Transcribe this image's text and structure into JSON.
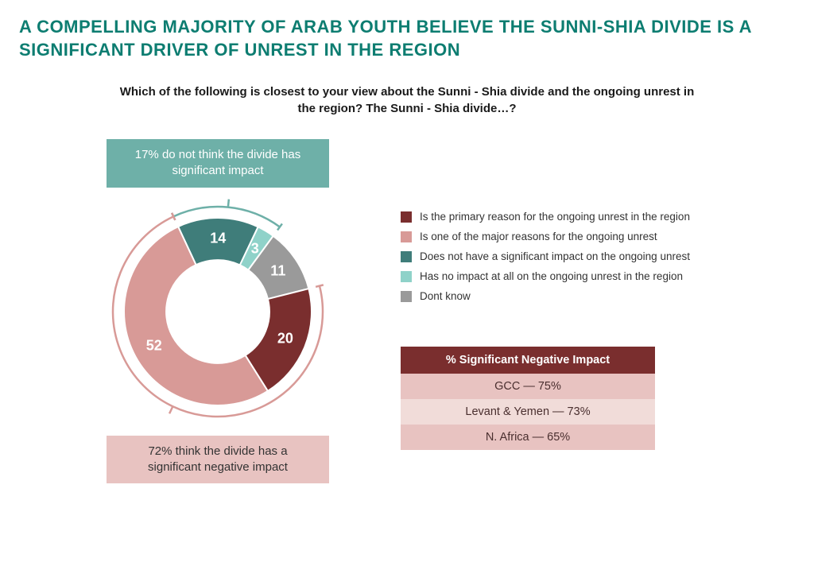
{
  "colors": {
    "teal_dark": "#0d7d71",
    "teal": "#6eb0a8",
    "teal_light": "#8fd2c9",
    "maroon": "#7a2e2e",
    "pink": "#d89a97",
    "pink_light": "#e8c3c1",
    "grey": "#9a9a9a",
    "text": "#333333",
    "bg": "#ffffff"
  },
  "headline": "A COMPELLING MAJORITY OF ARAB YOUTH BELIEVE THE SUNNI-SHIA DIVIDE IS A SIGNIFICANT DRIVER OF UNREST IN THE REGION",
  "question": "Which of the following is closest to your view about the Sunni - Shia divide and the ongoing unrest in the region? The Sunni - Shia divide…?",
  "callout_top": {
    "text": "17% do not think the divide has significant impact",
    "bg": "#6eb0a8",
    "text_color": "#ffffff"
  },
  "callout_bottom": {
    "text": "72% think the divide has a significant negative impact",
    "bg": "#e8c3c1",
    "text_color": "#333333"
  },
  "donut": {
    "type": "donut",
    "inner_radius_pct": 55,
    "start_angle_deg": 0,
    "direction": "clockwise",
    "segments": [
      {
        "label": "14",
        "value": 14,
        "color": "#3f7d7a",
        "legend": "Does not have a significant impact on the ongoing unrest"
      },
      {
        "label": "3",
        "value": 3,
        "color": "#8fd2c9",
        "legend": "Has no impact at all on the ongoing unrest in the region"
      },
      {
        "label": "11",
        "value": 11,
        "color": "#9a9a9a",
        "legend": "Dont know"
      },
      {
        "label": "20",
        "value": 20,
        "color": "#7a2e2e",
        "legend": "Is the primary reason for the ongoing unrest in the region"
      },
      {
        "label": "52",
        "value": 52,
        "color": "#d89a97",
        "legend": "Is one of the major reasons for the ongoing unrest"
      }
    ],
    "label_fontsize": 18,
    "label_color": "#ffffff",
    "brackets": [
      {
        "covers": [
          0,
          1
        ],
        "color": "#6eb0a8"
      },
      {
        "covers": [
          3,
          4
        ],
        "color": "#d89a97"
      }
    ]
  },
  "legend_order": [
    3,
    4,
    0,
    1,
    2
  ],
  "region_table": {
    "header": "% Significant Negative Impact",
    "header_bg": "#7a2e2e",
    "row_bg_alt": [
      "#e8c3c1",
      "#f1dcd9",
      "#e8c3c1"
    ],
    "rows": [
      {
        "label": "GCC — 75%"
      },
      {
        "label": "Levant & Yemen — 73%"
      },
      {
        "label": "N. Africa — 65%"
      }
    ]
  }
}
